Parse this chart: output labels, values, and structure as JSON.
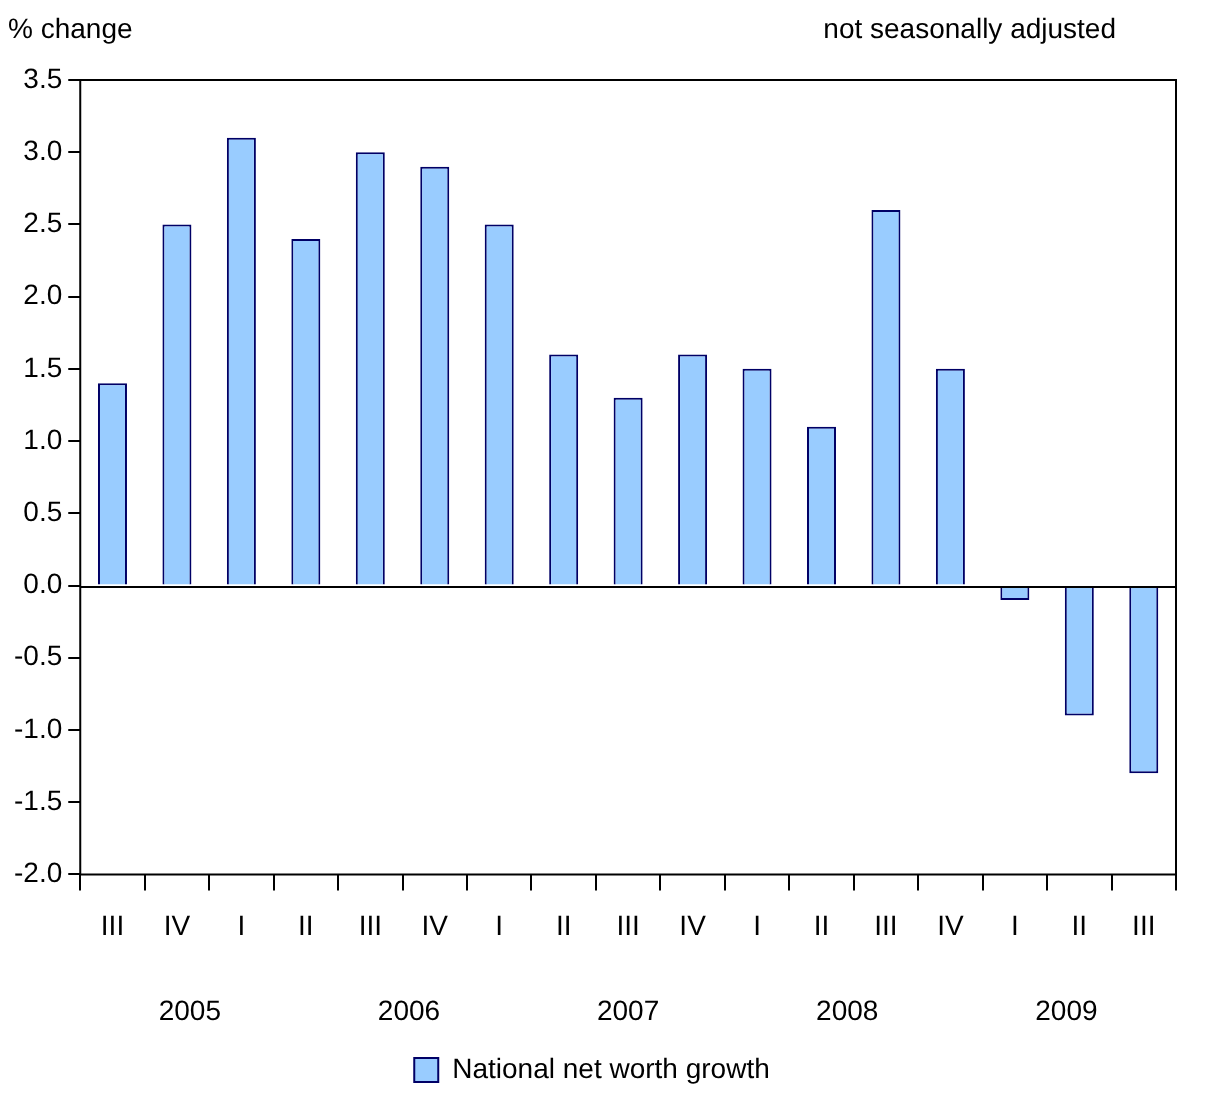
{
  "chart_data": {
    "type": "bar",
    "ylabel": "% change",
    "subtitle": "not seasonally adjusted",
    "categories": [
      "III",
      "IV",
      "I",
      "II",
      "III",
      "IV",
      "I",
      "II",
      "III",
      "IV",
      "I",
      "II",
      "III",
      "IV",
      "I",
      "II",
      "III"
    ],
    "series": [
      {
        "name": "National net worth growth",
        "color": "#99ccff",
        "values": [
          1.4,
          2.5,
          3.1,
          2.4,
          3.0,
          2.9,
          2.5,
          1.6,
          1.3,
          1.6,
          1.5,
          1.1,
          2.6,
          1.5,
          -0.1,
          -0.9,
          -1.3
        ]
      }
    ],
    "ylim": [
      -2.0,
      3.5
    ],
    "yticks": [
      {
        "value": -2,
        "label": "-2.0"
      },
      {
        "value": -1.5,
        "label": "-1.5"
      },
      {
        "value": -1,
        "label": "-1.0"
      },
      {
        "value": -0.5,
        "label": "-0.5"
      },
      {
        "value": 0,
        "label": "0.0"
      },
      {
        "value": 0.5,
        "label": "0.5"
      },
      {
        "value": 1,
        "label": "1.0"
      },
      {
        "value": 1.5,
        "label": "1.5"
      },
      {
        "value": 2,
        "label": "2.0"
      },
      {
        "value": 2.5,
        "label": "2.5"
      },
      {
        "value": 3,
        "label": "3.0"
      },
      {
        "value": 3.5,
        "label": "3.5"
      }
    ],
    "annotations": [
      "2005",
      "2006",
      "2007",
      "2008",
      "2009"
    ],
    "legend": "bottom"
  }
}
